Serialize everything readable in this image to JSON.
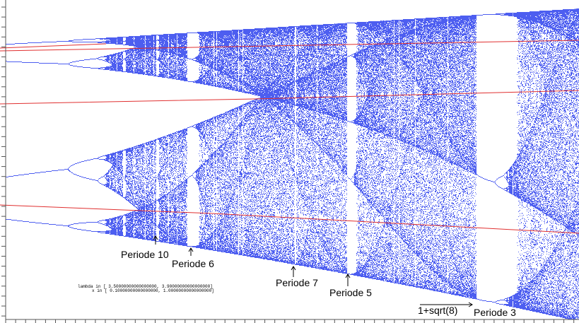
{
  "chart_data": {
    "type": "bifurcation",
    "color": "#4d5ef0",
    "xlim": [
      3.5,
      3.9
    ],
    "ylim": [
      0.1,
      1.0
    ],
    "range_labels": [
      "lambda in [ 3.50000000000000000,  3.90000000000000000]",
      "x in [ 0.10000000000000000,  1.00000000000000000]"
    ],
    "annotations": [
      "Periode 10",
      "Periode 6",
      "Periode 7",
      "Periode 5",
      "1+sqrt(8)",
      "Periode 3"
    ]
  }
}
